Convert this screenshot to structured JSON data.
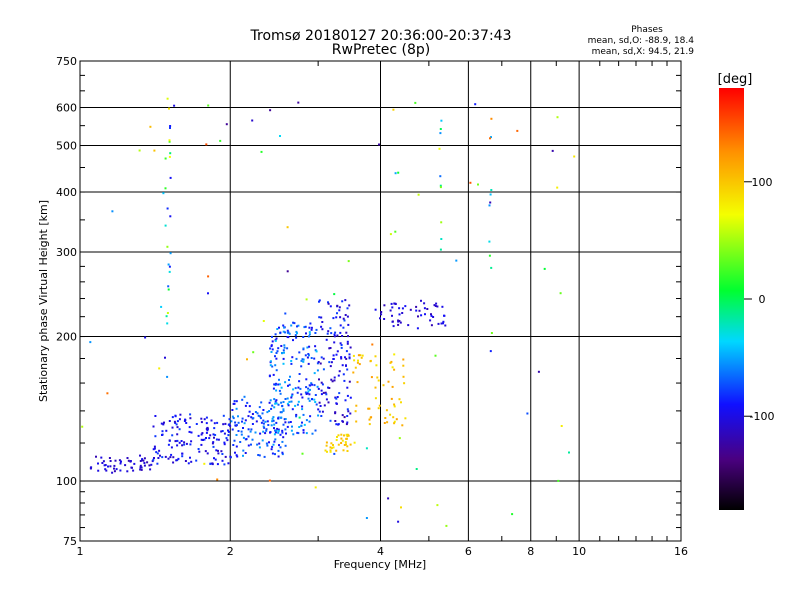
{
  "title": "Tromsø 20180127 20:36:00-20:37:43",
  "subtitle": "RwPretec (8p)",
  "phases": {
    "heading": "Phases",
    "line_o": "mean, sd,O:  -88.9, 18.4",
    "line_x": "mean, sd,X:  94.5, 21.9"
  },
  "colorbar": {
    "unit": "[deg]",
    "tick_labels": [
      "100",
      "0",
      "-100"
    ],
    "tick_values": [
      100,
      0,
      -100
    ],
    "range": [
      -180,
      180
    ]
  },
  "chart_data": {
    "type": "scatter",
    "xlabel": "Frequency [MHz]",
    "ylabel": "Stationary phase Virtual Height [km]",
    "x_scale": "log",
    "y_scale": "log",
    "xlim": [
      1,
      16
    ],
    "ylim": [
      75,
      750
    ],
    "x_ticks": [
      1,
      2,
      4,
      6,
      8,
      10,
      16
    ],
    "x_tick_labels": [
      "1",
      "2",
      "4",
      "6",
      "8",
      "10",
      "16"
    ],
    "y_ticks": [
      75,
      100,
      200,
      300,
      400,
      500,
      600,
      750
    ],
    "y_tick_labels": [
      "75",
      "100",
      "200",
      "300",
      "400",
      "500",
      "600",
      "750"
    ],
    "grid": true,
    "color_axis": "phase [deg]",
    "clusters": [
      {
        "x": [
          1.05,
          1.4
        ],
        "y": [
          104,
          113
        ],
        "phase": [
          -120,
          -95
        ],
        "count": 55
      },
      {
        "x": [
          1.4,
          2.0
        ],
        "y": [
          108,
          138
        ],
        "phase": [
          -115,
          -75
        ],
        "count": 150
      },
      {
        "x": [
          2.0,
          2.6
        ],
        "y": [
          112,
          150
        ],
        "phase": [
          -100,
          -50
        ],
        "count": 140
      },
      {
        "x": [
          2.4,
          3.0
        ],
        "y": [
          125,
          215
        ],
        "phase": [
          -100,
          -40
        ],
        "count": 210
      },
      {
        "x": [
          3.0,
          3.5
        ],
        "y": [
          130,
          240
        ],
        "phase": [
          -120,
          -70
        ],
        "count": 130
      },
      {
        "x": [
          3.1,
          3.55
        ],
        "y": [
          115,
          125
        ],
        "phase": [
          80,
          110
        ],
        "count": 35
      },
      {
        "x": [
          3.5,
          4.5
        ],
        "y": [
          130,
          185
        ],
        "phase": [
          80,
          120
        ],
        "count": 60
      },
      {
        "x": [
          3.9,
          5.4
        ],
        "y": [
          208,
          235
        ],
        "phase": [
          -120,
          -90
        ],
        "count": 55
      },
      {
        "x": [
          1.48,
          1.52
        ],
        "y": [
          120,
          650
        ],
        "phase": [
          -100,
          90
        ],
        "count": 25
      },
      {
        "x": [
          6.6,
          6.7
        ],
        "y": [
          170,
          600
        ],
        "phase": [
          -120,
          150
        ],
        "count": 12
      },
      {
        "x": [
          5.25,
          5.3
        ],
        "y": [
          300,
          600
        ],
        "phase": [
          -110,
          80
        ],
        "count": 10
      },
      {
        "x": [
          1.0,
          10.0
        ],
        "y": [
          80,
          650
        ],
        "phase": [
          -130,
          150
        ],
        "count": 80
      }
    ]
  }
}
